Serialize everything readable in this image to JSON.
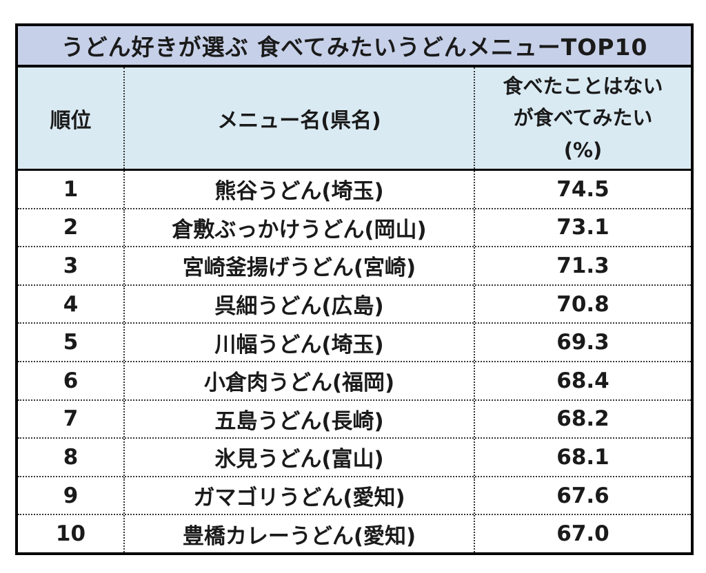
{
  "page": {
    "background": "#ffffff"
  },
  "table": {
    "title": "うどん好きが選ぶ 食べてみたいうどんメニューTOP10",
    "header": {
      "rank": "順位",
      "menu": "メニュー名(県名)",
      "pct_line1": "食べたことはない",
      "pct_line2": "が食べてみたい",
      "pct_line3": "(%)"
    },
    "colors": {
      "title_bg": "#c6d0e8",
      "header_bg": "#daeaf3",
      "border": "#000000",
      "divider_dotted": "#333333",
      "text": "#1a1a1a"
    }
  },
  "chart_data": {
    "type": "table",
    "title": "うどん好きが選ぶ 食べてみたいうどんメニューTOP10",
    "columns": [
      "順位",
      "メニュー名(県名)",
      "食べたことはないが食べてみたい(%)"
    ],
    "rows": [
      {
        "rank": "1",
        "menu": "熊谷うどん(埼玉)",
        "pct": "74.5"
      },
      {
        "rank": "2",
        "menu": "倉敷ぶっかけうどん(岡山)",
        "pct": "73.1"
      },
      {
        "rank": "3",
        "menu": "宮崎釜揚げうどん(宮崎)",
        "pct": "71.3"
      },
      {
        "rank": "4",
        "menu": "呉細うどん(広島)",
        "pct": "70.8"
      },
      {
        "rank": "5",
        "menu": "川幅うどん(埼玉)",
        "pct": "69.3"
      },
      {
        "rank": "6",
        "menu": "小倉肉うどん(福岡)",
        "pct": "68.4"
      },
      {
        "rank": "7",
        "menu": "五島うどん(長崎)",
        "pct": "68.2"
      },
      {
        "rank": "8",
        "menu": "氷見うどん(富山)",
        "pct": "68.1"
      },
      {
        "rank": "9",
        "menu": "ガマゴリうどん(愛知)",
        "pct": "67.6"
      },
      {
        "rank": "10",
        "menu": "豊橋カレーうどん(愛知)",
        "pct": "67.0"
      }
    ]
  }
}
